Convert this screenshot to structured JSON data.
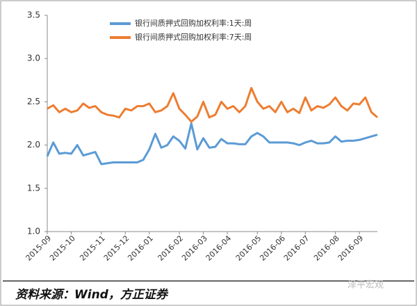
{
  "chart_data": {
    "type": "line",
    "categories": [
      "2015-09",
      null,
      null,
      null,
      "2015-10",
      null,
      null,
      null,
      null,
      "2015-11",
      null,
      null,
      null,
      "2015-12",
      null,
      null,
      null,
      "2016-01",
      null,
      null,
      null,
      null,
      "2016-02",
      null,
      null,
      null,
      "2016-03",
      null,
      null,
      null,
      "2016-04",
      null,
      null,
      null,
      null,
      "2016-05",
      null,
      null,
      null,
      "2016-06",
      null,
      null,
      null,
      "2016-07",
      null,
      null,
      null,
      null,
      "2016-08",
      null,
      null,
      null,
      "2016-09",
      null,
      null,
      null
    ],
    "series": [
      {
        "name": "银行间质押式回购加权利率:1天:周",
        "color": "#5b9bd5",
        "values": [
          1.87,
          2.03,
          1.9,
          1.91,
          1.9,
          2.0,
          1.88,
          1.9,
          1.92,
          1.78,
          1.79,
          1.8,
          1.8,
          1.8,
          1.8,
          1.8,
          1.83,
          1.95,
          2.13,
          1.97,
          2.0,
          2.1,
          2.05,
          1.96,
          2.25,
          1.95,
          2.08,
          1.97,
          1.98,
          2.07,
          2.02,
          2.02,
          2.01,
          2.01,
          2.1,
          2.14,
          2.1,
          2.03,
          2.03,
          2.03,
          2.03,
          2.02,
          2.0,
          2.03,
          2.05,
          2.02,
          2.02,
          2.03,
          2.1,
          2.04,
          2.05,
          2.05,
          2.06,
          2.08,
          2.1,
          2.12
        ]
      },
      {
        "name": "银行间质押式回购加权利率:7天:周",
        "color": "#ed7d31",
        "values": [
          2.42,
          2.46,
          2.38,
          2.42,
          2.38,
          2.4,
          2.48,
          2.43,
          2.45,
          2.38,
          2.35,
          2.34,
          2.32,
          2.42,
          2.4,
          2.45,
          2.45,
          2.48,
          2.38,
          2.4,
          2.45,
          2.6,
          2.42,
          2.35,
          2.27,
          2.33,
          2.5,
          2.32,
          2.35,
          2.5,
          2.42,
          2.45,
          2.38,
          2.45,
          2.66,
          2.5,
          2.42,
          2.45,
          2.38,
          2.5,
          2.38,
          2.42,
          2.37,
          2.55,
          2.4,
          2.45,
          2.43,
          2.47,
          2.55,
          2.45,
          2.4,
          2.48,
          2.47,
          2.55,
          2.38,
          2.32
        ]
      }
    ],
    "ylim": [
      1.0,
      3.5
    ],
    "yticks": [
      {
        "value": 1.0,
        "label": "1.0"
      },
      1.5,
      {
        "value": 2.0,
        "label": "2.0"
      },
      2.5,
      {
        "value": 3.0,
        "label": "3.0"
      },
      3.5
    ],
    "grid": false,
    "legend": "top",
    "source": "资料来源：Wind，方正证券",
    "watermark": "泽平宏观"
  }
}
